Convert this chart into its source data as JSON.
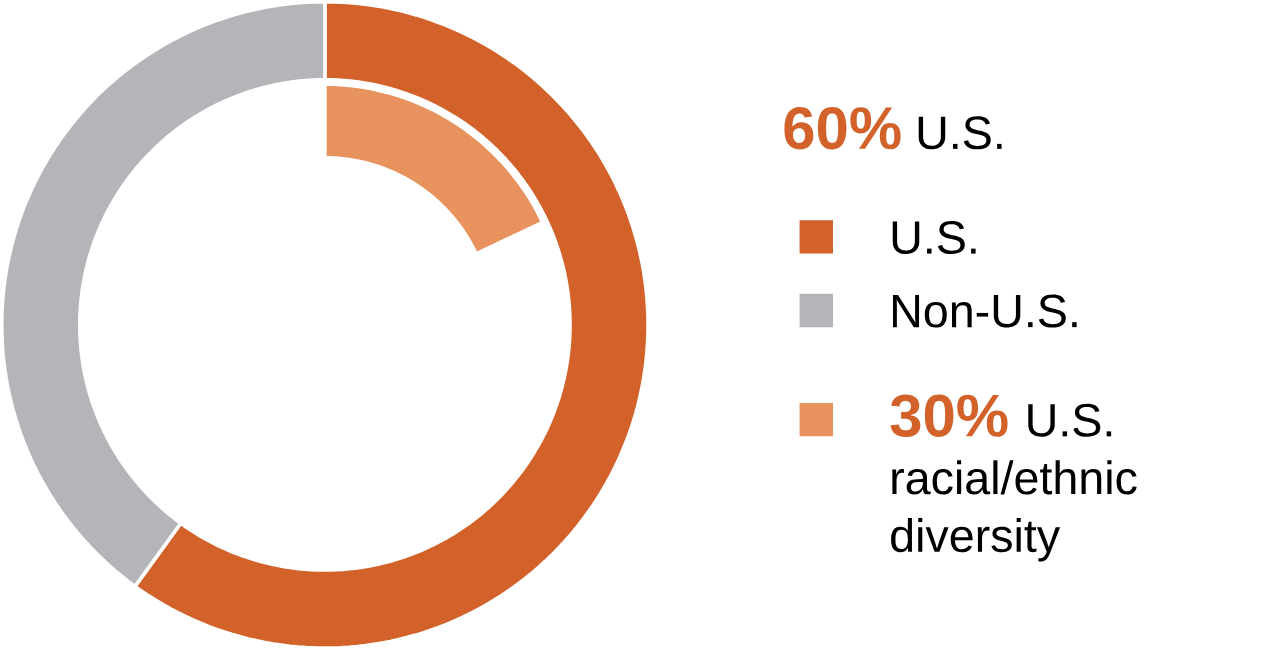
{
  "chart_data": {
    "type": "donut",
    "title": "**60%** U.S.",
    "categories": [
      "U.S.",
      "Non-U.S.",
      "**30%** U.S. racial/ethnic diversity"
    ],
    "colors": [
      "#d2622a",
      "#b3b5b8",
      "#e8925e"
    ],
    "series": [
      {
        "values": [
          60,
          40,
          null
        ]
      },
      {
        "values": [
          null,
          null,
          30
        ]
      }
    ],
    "legend": "right"
  }
}
